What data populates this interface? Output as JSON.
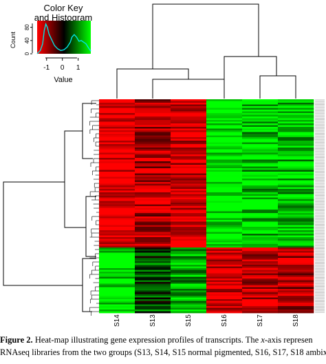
{
  "colors": {
    "red": "#ff0000",
    "black": "#000000",
    "green": "#00ff00",
    "histogram_line": "#00e5e5"
  },
  "caption": {
    "lead": "Figure 2.",
    "line1_a": " Heat-map illustrating gene expression profiles of transcripts. The ",
    "line1_italic": "x",
    "line1_b": "-axis represen",
    "line2": "RNAseq libraries from the two groups (S13, S14, S15 normal pigmented, S16, S17, S18 ambix"
  },
  "chart_data": [
    {
      "type": "heatmap",
      "columns": [
        "S14",
        "S13",
        "S15",
        "S16",
        "S17",
        "S18"
      ],
      "column_dendrogram": "((S14,(S13,S15)),(S16,(S17,S18)))",
      "row_dendrogram": "two main clusters",
      "blocks": [
        {
          "rows": "upper cluster",
          "values": [
            -1.0,
            -0.7,
            -0.9,
            1.0,
            0.8,
            0.8
          ]
        },
        {
          "rows": "lower cluster",
          "values": [
            0.9,
            0.3,
            0.7,
            -0.9,
            -0.8,
            -0.7
          ]
        }
      ],
      "color_scale": {
        "low": "red",
        "mid": "black",
        "high": "green"
      }
    },
    {
      "type": "line",
      "title": "Color Key and Histogram",
      "title_line1": "Color Key",
      "title_line2": "and Histogram",
      "xlabel": "Value",
      "ylabel": "Count",
      "x_ticks": [
        "-1",
        "0",
        "1"
      ],
      "y_ticks": [
        "0",
        "40",
        "80"
      ],
      "x_range": [
        -1.6,
        1.8
      ],
      "y_range": [
        0,
        100
      ],
      "x": [
        -1.6,
        -1.4,
        -1.25,
        -1.15,
        -1.05,
        -0.95,
        -0.85,
        -0.7,
        -0.5,
        -0.3,
        -0.1,
        0.1,
        0.3,
        0.5,
        0.6,
        0.75,
        0.9,
        1.05,
        1.2,
        1.35,
        1.5,
        1.65,
        1.8
      ],
      "y": [
        0,
        10,
        30,
        70,
        90,
        80,
        60,
        45,
        25,
        15,
        10,
        12,
        20,
        35,
        50,
        58,
        50,
        38,
        40,
        35,
        30,
        18,
        8
      ]
    }
  ]
}
